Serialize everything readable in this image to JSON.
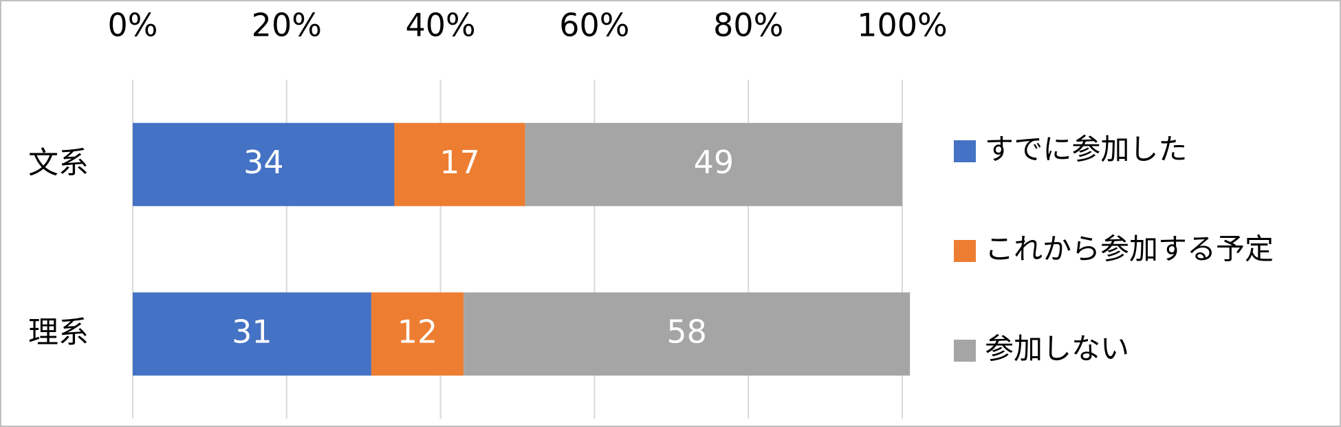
{
  "chart_data": {
    "type": "stacked-bar-horizontal",
    "categories": [
      "文系",
      "理系"
    ],
    "series": [
      {
        "name": "すでに参加した",
        "color": "#4472c4",
        "values": [
          34,
          31
        ]
      },
      {
        "name": "これから参加する予定",
        "color": "#ed7d31",
        "values": [
          17,
          12
        ]
      },
      {
        "name": "参加しない",
        "color": "#a5a5a5",
        "values": [
          49,
          58
        ]
      }
    ],
    "xlim": [
      0,
      100
    ],
    "xticks": [
      {
        "value": 0,
        "label": "0%"
      },
      {
        "value": 20,
        "label": "20%"
      },
      {
        "value": 40,
        "label": "40%"
      },
      {
        "value": 60,
        "label": "60%"
      },
      {
        "value": 80,
        "label": "80%"
      },
      {
        "value": 100,
        "label": "100%"
      }
    ],
    "grid": true,
    "legend": "right"
  }
}
